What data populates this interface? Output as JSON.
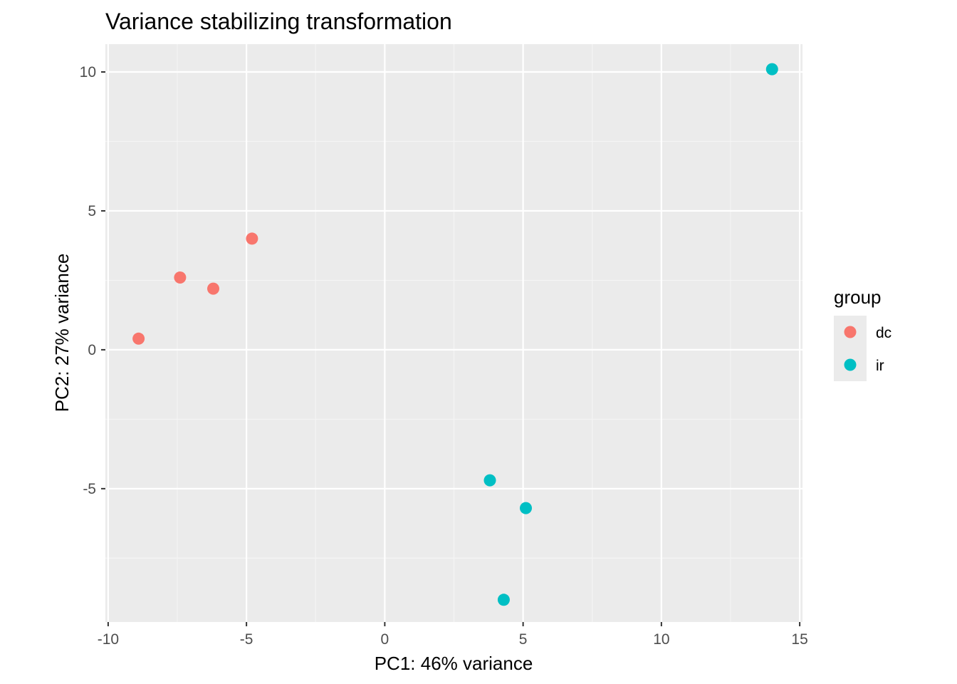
{
  "chart_data": {
    "type": "scatter",
    "title": "Variance stabilizing transformation",
    "xlabel": "PC1: 46% variance",
    "ylabel": "PC2: 27% variance",
    "xlim": [
      -10.1,
      15.1
    ],
    "ylim": [
      -9.8,
      11.0
    ],
    "xticks": [
      -10,
      -5,
      0,
      5,
      10,
      15
    ],
    "yticks": [
      -5,
      0,
      5,
      10
    ],
    "xtick_labels": [
      "-10",
      "-5",
      "0",
      "5",
      "10",
      "15"
    ],
    "ytick_labels": [
      "-5",
      "0",
      "5",
      "10"
    ],
    "grid": true,
    "legend": {
      "title": "group",
      "position": "right",
      "entries": [
        {
          "label": "dc",
          "color": "#F8766D"
        },
        {
          "label": "ir",
          "color": "#00BFC4"
        }
      ]
    },
    "series": [
      {
        "name": "dc",
        "color": "#F8766D",
        "points": [
          {
            "x": -8.9,
            "y": 0.4
          },
          {
            "x": -7.4,
            "y": 2.6
          },
          {
            "x": -6.2,
            "y": 2.2
          },
          {
            "x": -4.8,
            "y": 4.0
          }
        ]
      },
      {
        "name": "ir",
        "color": "#00BFC4",
        "points": [
          {
            "x": 3.8,
            "y": -4.7
          },
          {
            "x": 5.1,
            "y": -5.7
          },
          {
            "x": 4.3,
            "y": -9.0
          },
          {
            "x": 14.0,
            "y": 10.1
          }
        ]
      }
    ],
    "colors": {
      "panel_background": "#EBEBEB",
      "grid_major": "#FFFFFF",
      "grid_minor": "#F5F5F5",
      "tick_mark": "#333333"
    }
  }
}
